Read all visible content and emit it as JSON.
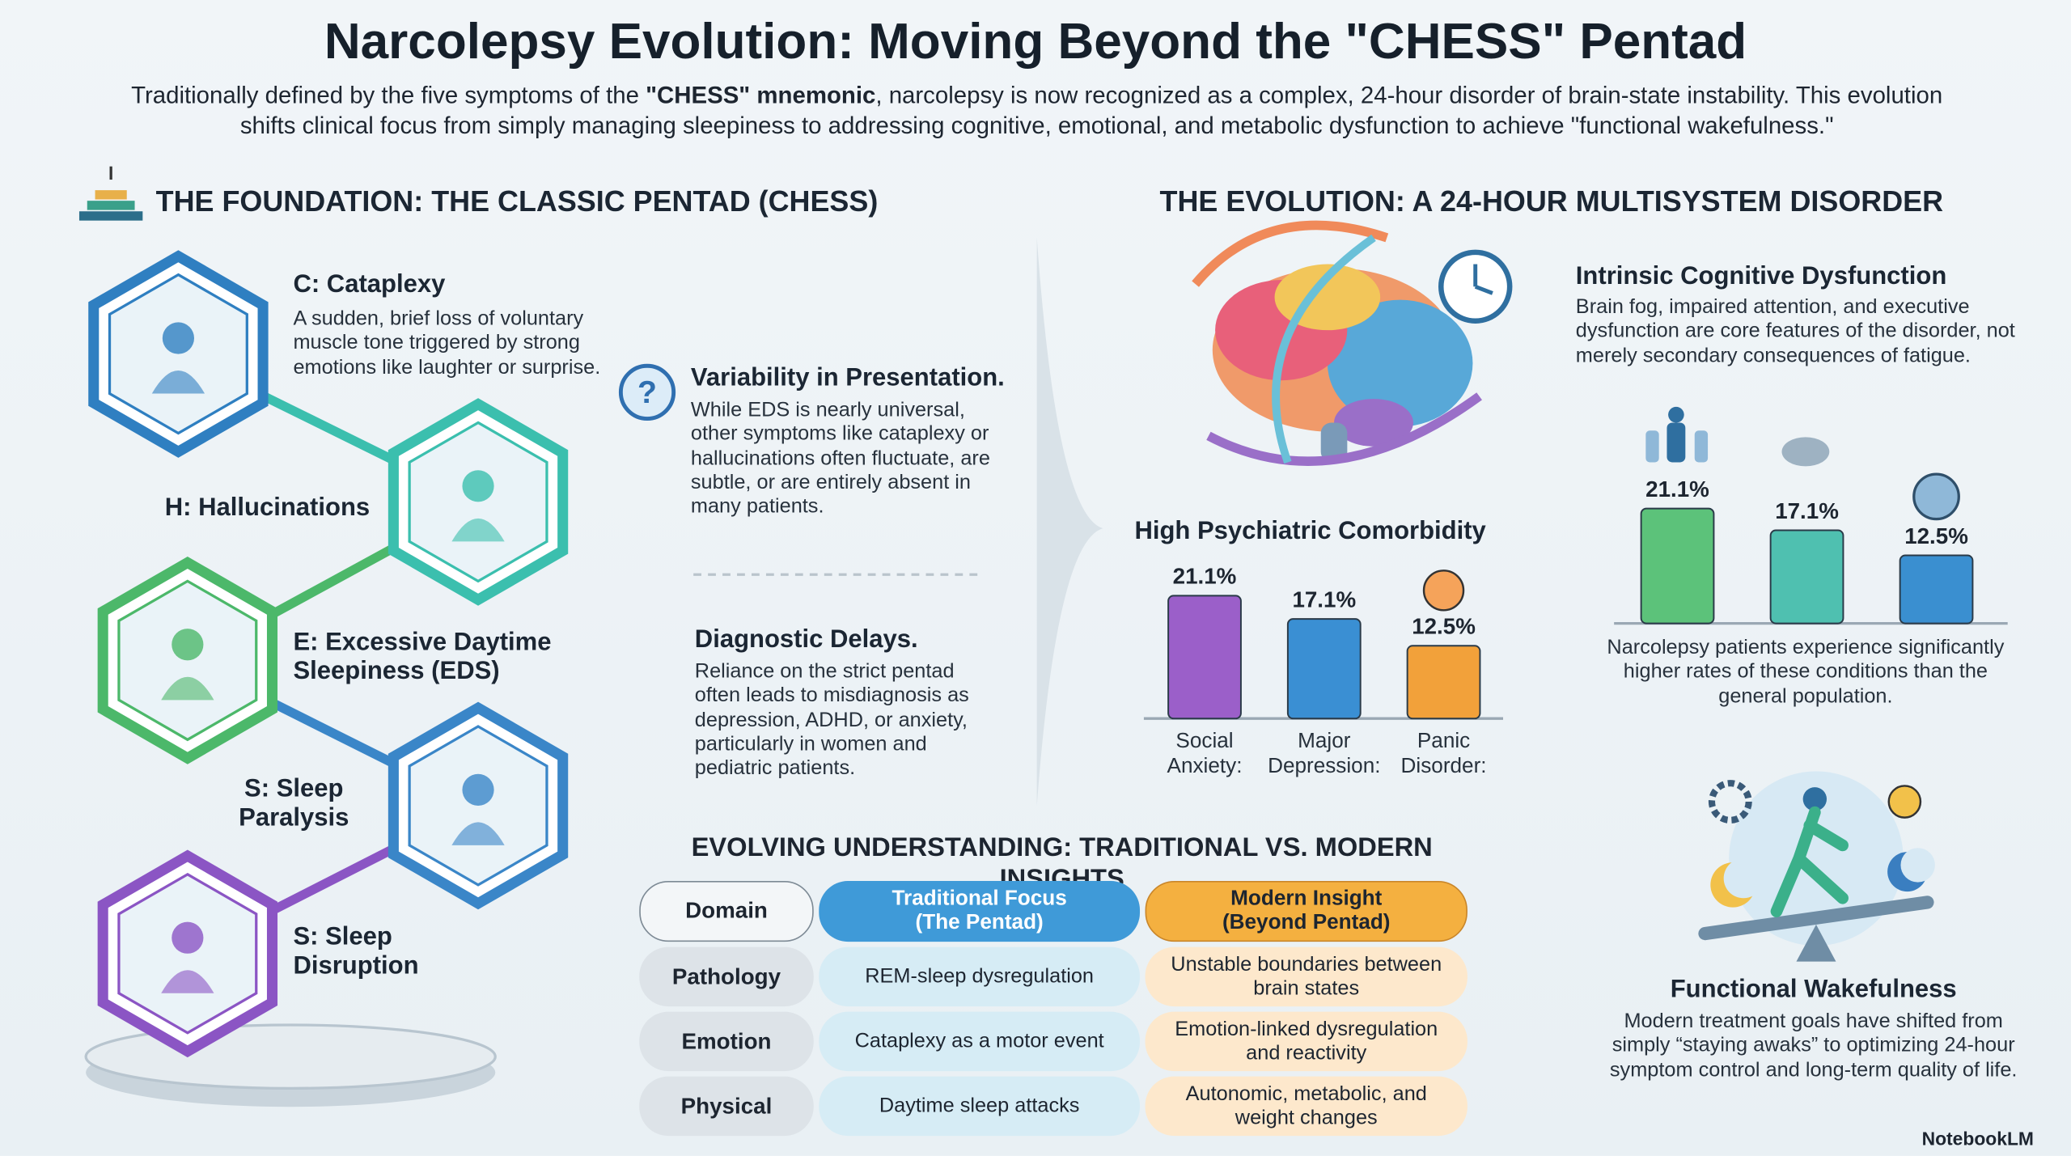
{
  "header": {
    "title": "Narcolepsy Evolution: Moving Beyond the \"CHESS\" Pentad",
    "subtitle": [
      "Traditionally defined by the five symptoms of the ",
      "\"CHESS\" mnemonic",
      ", narcolepsy is now recognized as a complex, 24-hour disorder of brain-state instability. This evolution shifts clinical focus from simply managing sleepiness to addressing cognitive, emotional, and metabolic dysfunction to achieve \"functional wakefulness.\""
    ]
  },
  "foundation": {
    "heading": "THE FOUNDATION: THE CLASSIC PENTAD (CHESS)",
    "items": [
      {
        "label": "C: Cataplexy",
        "description": "A sudden, brief loss of voluntary muscle tone triggered by strong emotions like laughter or surprise."
      },
      {
        "label": "H: Hallucinations"
      },
      {
        "label": "E: Excessive Daytime Sleepiness (EDS)"
      },
      {
        "label": "S: Sleep Paralysis"
      },
      {
        "label": "S: Sleep Disruption"
      }
    ]
  },
  "notes": [
    {
      "title": "Variability in Presentation.",
      "text": "While EDS is nearly universal, other symptoms like cataplexy or hallucinations often fluctuate, are subtle, or are entirely absent in many patients."
    },
    {
      "title": "Diagnostic Delays.",
      "text": "Reliance on the strict pentad often leads to misdiagnosis as depression, ADHD, or anxiety, particularly in women and pediatric patients."
    }
  ],
  "evolution": {
    "heading": "THE EVOLUTION: A 24-HOUR MULTISYSTEM DISORDER",
    "cognitive": {
      "title": "Intrinsic Cognitive Dysfunction",
      "text": "Brain fog, impaired attention, and executive dysfunction are core features of the disorder, not merely secondary consequences of fatigue."
    },
    "comorbidity_chart": {
      "type": "bar",
      "title": "High Psychiatric Comorbidity",
      "categories": [
        "Social Anxiety:",
        "Major Depression:",
        "Panic Disorder:"
      ],
      "values": [
        21.1,
        17.1,
        12.5
      ],
      "value_labels": [
        "21.1%",
        "17.1%",
        "12.5%"
      ],
      "colors": [
        "#9b5fc9",
        "#3a8fd3",
        "#f2a13a"
      ]
    },
    "population_chart": {
      "type": "bar",
      "values": [
        21.1,
        17.1,
        12.5
      ],
      "value_labels": [
        "21.1%",
        "17.1%",
        "12.5%"
      ],
      "colors": [
        "#5cc27a",
        "#4fc0b0",
        "#3a8fd0"
      ],
      "caption": "Narcolepsy patients experience significantly higher rates of these conditions than the general population."
    },
    "wakefulness": {
      "title": "Functional Wakefulness",
      "text": "Modern treatment goals have shifted from simply “staying awaks” to optimizing 24-hour symptom control and long-term quality of life."
    }
  },
  "table": {
    "title": "EVOLVING UNDERSTANDING: TRADITIONAL VS. MODERN INSIGHTS",
    "header": [
      "Domain",
      "Traditional Focus (The Pentad)",
      "Modern Insight (Beyond Pentad)"
    ],
    "rows": [
      [
        "Pathology",
        "REM-sleep dysregulation",
        "Unstable boundaries between brain states"
      ],
      [
        "Emotion",
        "Cataplexy as a motor event",
        "Emotion-linked dysregulation and reactivity"
      ],
      [
        "Physical",
        "Daytime sleep attacks",
        "Autonomic, metabolic, and weight changes"
      ]
    ]
  },
  "footer": {
    "brand": "NotebookLM"
  }
}
